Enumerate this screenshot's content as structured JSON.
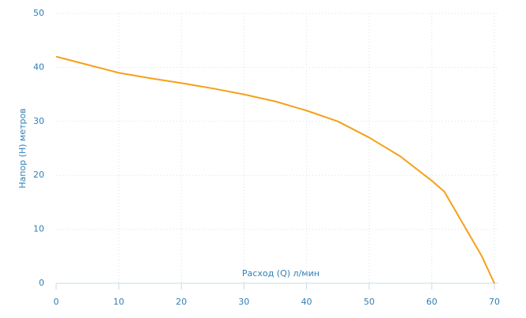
{
  "chart_data": {
    "type": "line",
    "x_label": "Расход (Q) л/мин",
    "y_label": "Напор (H) метров",
    "x": [
      0,
      5,
      10,
      15,
      20,
      25,
      30,
      35,
      40,
      45,
      50,
      55,
      60,
      62,
      65,
      68,
      70
    ],
    "series": [
      {
        "name": "H",
        "color": "#f5a01a",
        "values": [
          42,
          40.5,
          39,
          38,
          37.1,
          36.1,
          35,
          33.7,
          32,
          30,
          27,
          23.5,
          19,
          17,
          11,
          5,
          0
        ]
      }
    ],
    "xlim": [
      0,
      70
    ],
    "xticks": [
      0,
      10,
      20,
      30,
      40,
      50,
      60,
      70
    ],
    "ylim": [
      0,
      50
    ],
    "yticks": [
      0,
      10,
      20,
      30,
      40,
      50
    ],
    "grid": true
  }
}
